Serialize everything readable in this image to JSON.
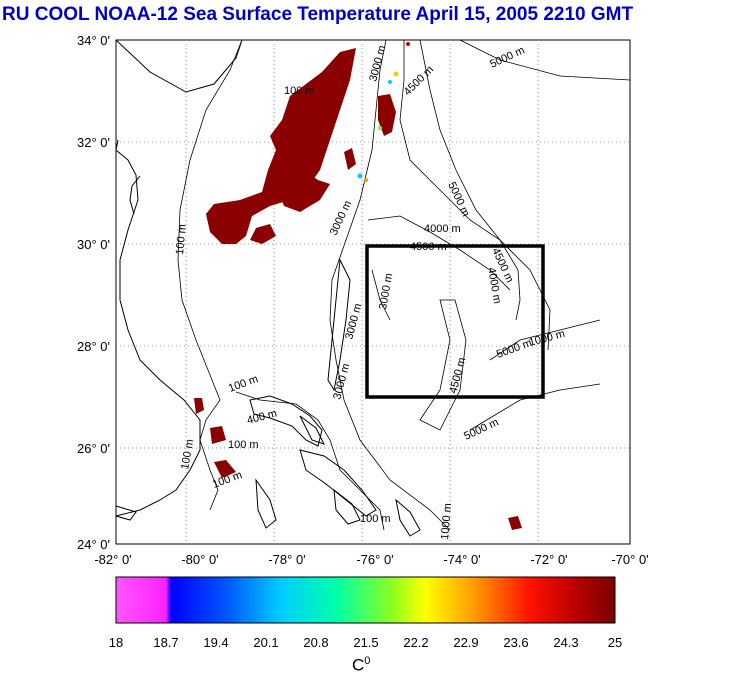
{
  "title": "RU COOL  NOAA-12 Sea Surface Temperature April 15, 2005 2210 GMT",
  "map": {
    "lat_labels": [
      "34° 0'",
      "32° 0'",
      "30° 0'",
      "28° 0'",
      "26° 0'",
      "24° 0'"
    ],
    "lon_labels": [
      "-82° 0'",
      "-80° 0'",
      "-78° 0'",
      "-76° 0'",
      "-74° 0'",
      "-72° 0'",
      "-70° 0'"
    ],
    "contour_labels": [
      "100 m",
      "100 m",
      "100 m",
      "100 m",
      "100 m",
      "100 m",
      "100 m",
      "3000 m",
      "3000 m",
      "3000 m",
      "3000 m",
      "3000 m",
      "4000 m",
      "4000 m",
      "4500 m",
      "4500 m",
      "4500 m",
      "4500 m",
      "5000 m",
      "5000 m",
      "5000 m",
      "5000 m",
      "1000 m",
      "1000 m",
      "400 m"
    ],
    "box_region": {
      "lon_min": -76,
      "lon_max": -72,
      "lat_min": 27,
      "lat_max": 30
    },
    "ocean_color": "#ffffff",
    "sst_color": "#8b0000"
  },
  "colorbar": {
    "tick_labels": [
      "18",
      "18.7",
      "19.4",
      "20.1",
      "20.8",
      "21.5",
      "22.2",
      "22.9",
      "23.6",
      "24.3",
      "25"
    ],
    "min": 18,
    "max": 25,
    "unit": "C",
    "unit_sup": "0",
    "colors": [
      "#ff44ff",
      "#8800ff",
      "#0000ff",
      "#0066ff",
      "#00ccff",
      "#00ffcc",
      "#66ff33",
      "#ffff00",
      "#ff9900",
      "#ff2200",
      "#cc0000",
      "#880000"
    ]
  }
}
